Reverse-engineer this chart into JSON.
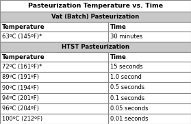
{
  "title": "Pasteurization Temperature vs. Time",
  "vat_header": "Vat (Batch) Pasteurization",
  "htst_header": "HTST Pasteurization",
  "col_headers": [
    "Temperature",
    "Time"
  ],
  "vat_rows": [
    [
      "63ºC (145ºF)*",
      "30 minutes"
    ]
  ],
  "htst_rows": [
    [
      "72ºC (161ºF)*",
      "15 seconds"
    ],
    [
      "89ºC (191ºF)",
      "1.0 second"
    ],
    [
      "90ºC (194ºF)",
      "0.5 seconds"
    ],
    [
      "94ºC (201ºF)",
      "0.1 seconds"
    ],
    [
      "96ºC (204ºF)",
      "0.05 seconds"
    ],
    [
      "100ºC (212ºF)",
      "0.01 seconds"
    ]
  ],
  "title_fontsize": 6.8,
  "header_fontsize": 6.2,
  "cell_fontsize": 6.0,
  "bg_color": "#ffffff",
  "section_header_color": "#c8c8c8",
  "border_color": "#888888",
  "col_split": 0.565
}
